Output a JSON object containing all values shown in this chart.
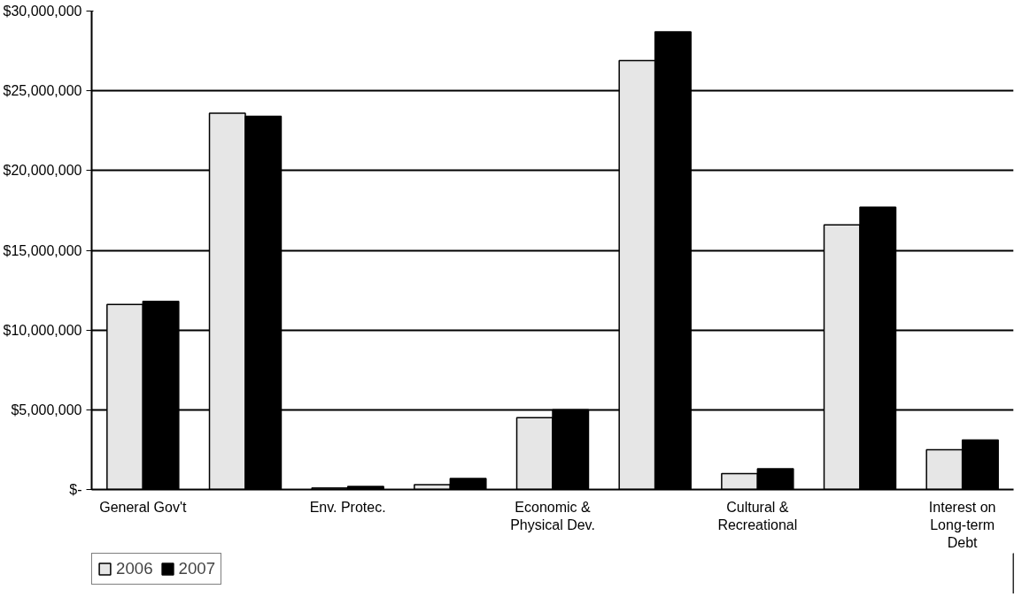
{
  "chart_data": {
    "type": "bar",
    "categories": [
      "General Gov't",
      null,
      "Env. Protec.",
      null,
      "Economic & Physical Dev.",
      null,
      "Cultural & Recreational",
      null,
      "Interest on Long-term Debt"
    ],
    "series": [
      {
        "name": "2006",
        "color": "#e6e6e6",
        "values": [
          11600000,
          23600000,
          100000,
          300000,
          4500000,
          26900000,
          1000000,
          16600000,
          2500000
        ]
      },
      {
        "name": "2007",
        "color": "#000000",
        "values": [
          11800000,
          23400000,
          200000,
          700000,
          5000000,
          28700000,
          1300000,
          17700000,
          3100000
        ]
      }
    ],
    "ylim": [
      0,
      30000000
    ],
    "yticks": [
      {
        "value": 0,
        "label": "$-"
      },
      {
        "value": 5000000,
        "label": "$5,000,000"
      },
      {
        "value": 10000000,
        "label": "$10,000,000"
      },
      {
        "value": 15000000,
        "label": "$15,000,000"
      },
      {
        "value": 20000000,
        "label": "$20,000,000"
      },
      {
        "value": 25000000,
        "label": "$25,000,000"
      },
      {
        "value": 30000000,
        "label": "$30,000,000"
      }
    ],
    "grid": "y",
    "legend": "bottom left"
  }
}
